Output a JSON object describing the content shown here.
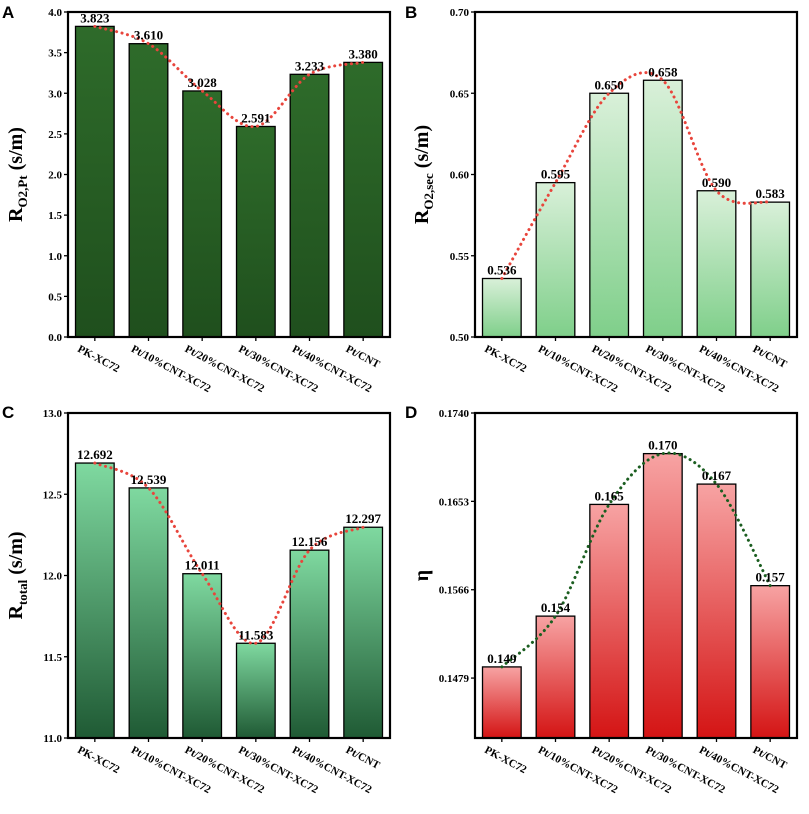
{
  "chart_data": [
    {
      "panel": "A",
      "type": "bar",
      "ylabel_main": "R",
      "ylabel_sub": "O2,Pt",
      "ylabel_unit": " (s/m)",
      "categories": [
        "PK-XC72",
        "Pt/10%CNT-XC72",
        "Pt/20%CNT-XC72",
        "Pt/30%CNT-XC72",
        "Pt/40%CNT-XC72",
        "Pt/CNT"
      ],
      "values": [
        3.823,
        3.61,
        3.028,
        2.591,
        3.233,
        3.38
      ],
      "value_labels": [
        "3.823",
        "3.610",
        "3.028",
        "2.591",
        "3.233",
        "3.380"
      ],
      "ylim": [
        0.0,
        4.0
      ],
      "yticks": [
        0.0,
        0.5,
        1.0,
        1.5,
        2.0,
        2.5,
        3.0,
        3.5,
        4.0
      ],
      "ytick_labels": [
        "0.0",
        "0.5",
        "1.0",
        "1.5",
        "2.0",
        "2.5",
        "3.0",
        "3.5",
        "4.0"
      ],
      "bar_gradient": [
        "#2e6b2a",
        "#1f4f1d"
      ],
      "line_color": "#e8453c"
    },
    {
      "panel": "B",
      "type": "bar",
      "ylabel_main": "R",
      "ylabel_sub": "O2,sec",
      "ylabel_unit": " (s/m)",
      "categories": [
        "PK-XC72",
        "Pt/10%CNT-XC72",
        "Pt/20%CNT-XC72",
        "Pt/30%CNT-XC72",
        "Pt/40%CNT-XC72",
        "Pt/CNT"
      ],
      "values": [
        0.536,
        0.595,
        0.65,
        0.658,
        0.59,
        0.583
      ],
      "value_labels": [
        "0.536",
        "0.595",
        "0.650",
        "0.658",
        "0.590",
        "0.583"
      ],
      "ylim": [
        0.5,
        0.7
      ],
      "yticks": [
        0.5,
        0.55,
        0.6,
        0.65,
        0.7
      ],
      "ytick_labels": [
        "0.50",
        "0.55",
        "0.60",
        "0.65",
        "0.70"
      ],
      "bar_gradient": [
        "#d9f0d9",
        "#7fcf8a"
      ],
      "line_color": "#e8453c"
    },
    {
      "panel": "C",
      "type": "bar",
      "ylabel_main": "R",
      "ylabel_sub": "total",
      "ylabel_unit": " (s/m)",
      "categories": [
        "PK-XC72",
        "Pt/10%CNT-XC72",
        "Pt/20%CNT-XC72",
        "Pt/30%CNT-XC72",
        "Pt/40%CNT-XC72",
        "Pt/CNT"
      ],
      "values": [
        12.692,
        12.539,
        12.011,
        11.583,
        12.156,
        12.297
      ],
      "value_labels": [
        "12.692",
        "12.539",
        "12.011",
        "11.583",
        "12.156",
        "12.297"
      ],
      "ylim": [
        11.0,
        13.0
      ],
      "yticks": [
        11.0,
        11.5,
        12.0,
        12.5,
        13.0
      ],
      "ytick_labels": [
        "11.0",
        "11.5",
        "12.0",
        "12.5",
        "13.0"
      ],
      "bar_gradient": [
        "#7fd9a0",
        "#1f5a34"
      ],
      "line_color": "#e8453c"
    },
    {
      "panel": "D",
      "type": "bar",
      "ylabel_main": "η",
      "ylabel_sub": "",
      "ylabel_unit": "",
      "categories": [
        "PK-XC72",
        "Pt/10%CNT-XC72",
        "Pt/20%CNT-XC72",
        "Pt/30%CNT-XC72",
        "Pt/40%CNT-XC72",
        "Pt/CNT"
      ],
      "values": [
        0.149,
        0.154,
        0.165,
        0.17,
        0.167,
        0.157
      ],
      "value_labels": [
        "0.149",
        "0.154",
        "0.165",
        "0.170",
        "0.167",
        "0.157"
      ],
      "ylim": [
        0.142,
        0.174
      ],
      "yticks": [
        0.1479,
        0.1566,
        0.1653,
        0.174
      ],
      "ytick_labels": [
        "0.1479",
        "0.1566",
        "0.1653",
        "0.1740"
      ],
      "bar_gradient": [
        "#f7a3a3",
        "#d41414"
      ],
      "line_color": "#1b5e20"
    }
  ]
}
